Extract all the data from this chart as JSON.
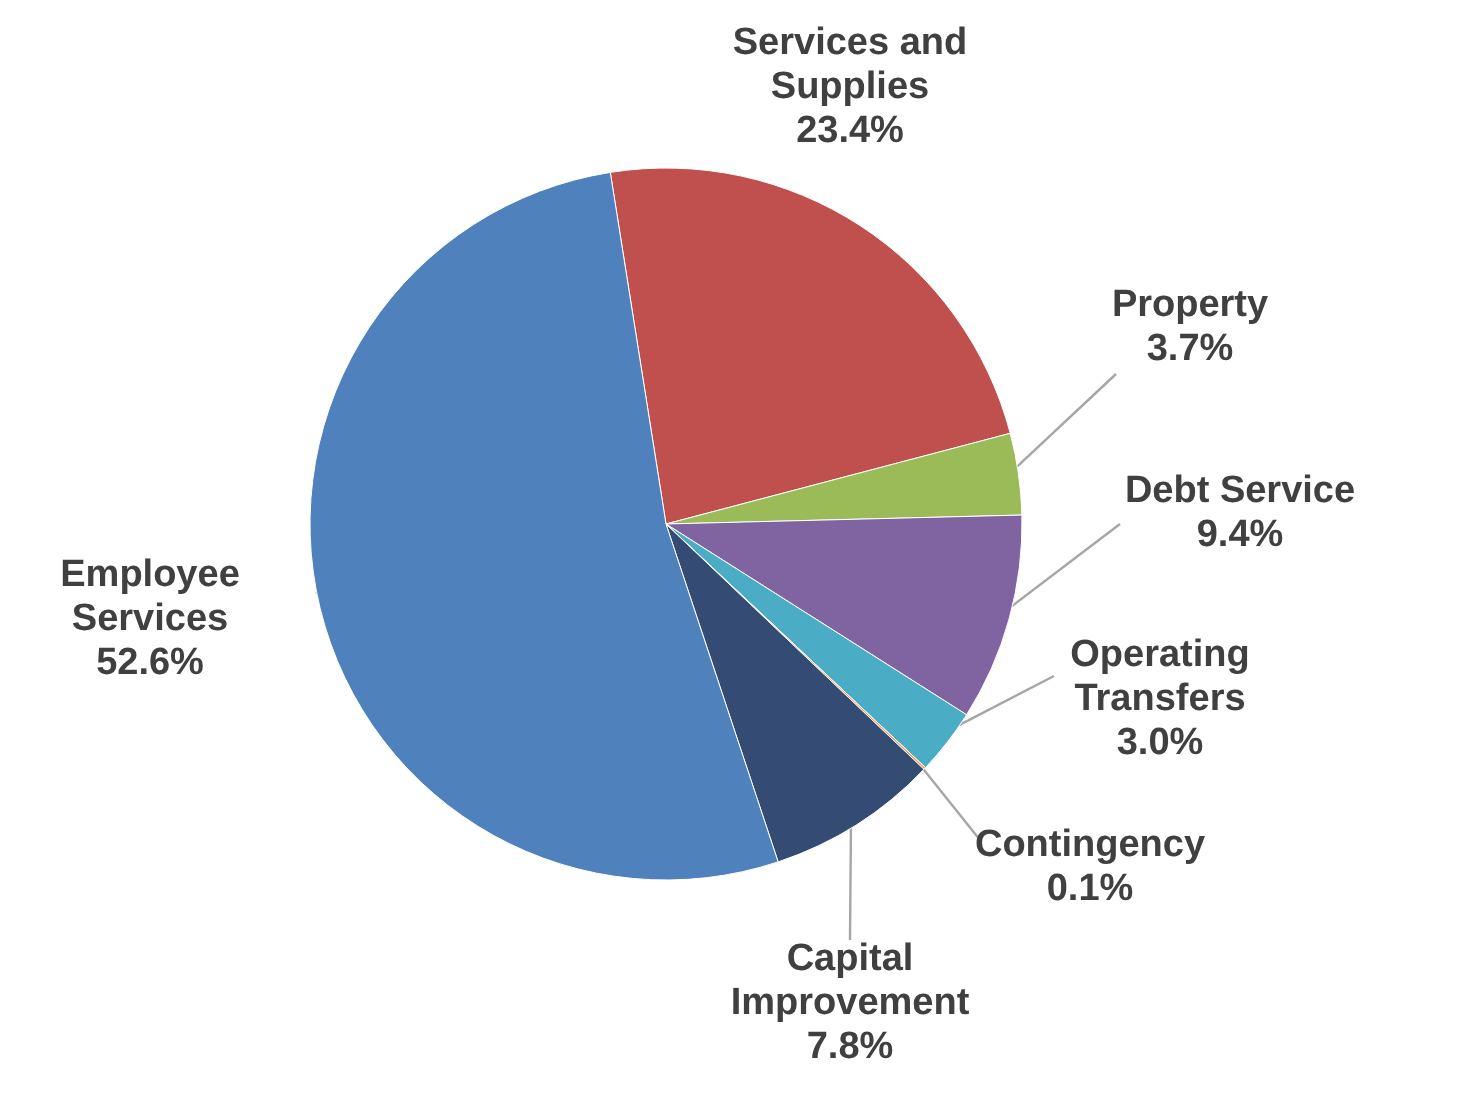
{
  "chart_data": {
    "type": "pie",
    "categories": [
      "Services and Supplies",
      "Property",
      "Debt Service",
      "Operating Transfers",
      "Contingency",
      "Capital Improvement",
      "Employee Services"
    ],
    "values": [
      23.4,
      3.7,
      9.4,
      3.0,
      0.1,
      7.8,
      52.6
    ],
    "value_labels": [
      "23.4%",
      "3.7%",
      "9.4%",
      "3.0%",
      "0.1%",
      "7.8%",
      "52.6%"
    ],
    "colors": [
      "#c0504d",
      "#9bbb59",
      "#8064a2",
      "#4bacc6",
      "#f79646",
      "#344b73",
      "#4f81bd"
    ]
  }
}
